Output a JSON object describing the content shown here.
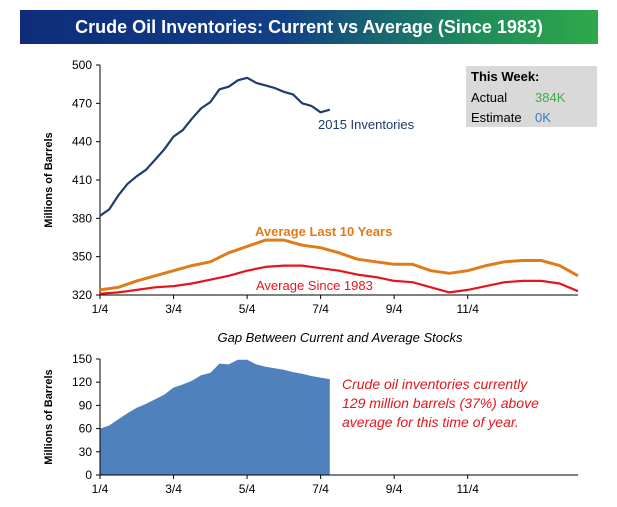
{
  "banner_title": "Crude Oil Inventories: Current vs Average (Since 1983)",
  "colors": {
    "current": "#1f3a6e",
    "avg10": "#e07b1a",
    "avg_since": "#e3161b",
    "gap_fill": "#4f81bd",
    "note": "#e3161b",
    "actual_value": "#3fae49",
    "estimate_value": "#3a78c2",
    "info_bg": "#d9d9d9"
  },
  "info_box": {
    "title": "This Week:",
    "rows": [
      {
        "label": "Actual",
        "value": "384K"
      },
      {
        "label": "Estimate",
        "value": "0K"
      }
    ]
  },
  "note_lines": [
    "Crude oil inventories currently",
    "129 million barrels (37%) above",
    "average for this time of year."
  ],
  "chart_data": [
    {
      "type": "line",
      "ylabel": "Millions of Barrels",
      "ylim": [
        320,
        500
      ],
      "y_ticks": [
        "500",
        "470",
        "440",
        "410",
        "380",
        "350",
        "320"
      ],
      "x_ticks": [
        "1/4",
        "3/4",
        "5/4",
        "7/4",
        "9/4",
        "11/4"
      ],
      "series": [
        {
          "name": "2015 Inventories",
          "x": [
            0,
            1,
            2,
            3,
            4,
            5,
            6,
            7,
            8,
            9,
            10,
            11,
            12,
            13,
            14,
            15,
            16,
            17,
            18,
            19,
            20,
            21,
            22,
            23,
            24,
            25
          ],
          "values": [
            382,
            387,
            398,
            407,
            413,
            418,
            426,
            434,
            444,
            449,
            458,
            466,
            471,
            481,
            483,
            488,
            490,
            486,
            484,
            482,
            479,
            477,
            470,
            468,
            463,
            465
          ]
        },
        {
          "name": "Average Last 10 Years",
          "x": [
            0,
            2,
            4,
            6,
            8,
            10,
            12,
            14,
            16,
            18,
            20,
            22,
            24,
            26,
            28,
            30,
            32,
            34,
            36,
            38,
            40,
            42,
            44,
            46,
            48,
            50,
            52
          ],
          "values": [
            324,
            326,
            331,
            335,
            339,
            343,
            346,
            353,
            358,
            363,
            363,
            359,
            357,
            353,
            348,
            346,
            344,
            344,
            339,
            337,
            339,
            343,
            346,
            347,
            347,
            343,
            335
          ]
        },
        {
          "name": "Average Since 1983",
          "x": [
            0,
            2,
            4,
            6,
            8,
            10,
            12,
            14,
            16,
            18,
            20,
            22,
            24,
            26,
            28,
            30,
            32,
            34,
            36,
            38,
            40,
            42,
            44,
            46,
            48,
            50,
            52
          ],
          "values": [
            321,
            322,
            324,
            326,
            327,
            329,
            332,
            335,
            339,
            342,
            343,
            343,
            341,
            339,
            336,
            334,
            331,
            330,
            326,
            322,
            324,
            327,
            330,
            331,
            331,
            329,
            323
          ]
        }
      ]
    },
    {
      "type": "area",
      "title": "Gap Between Current and Average Stocks",
      "ylabel": "Millions of Barrels",
      "ylim": [
        0,
        150
      ],
      "y_ticks": [
        "150",
        "120",
        "90",
        "60",
        "30",
        "0"
      ],
      "x_ticks": [
        "1/4",
        "3/4",
        "5/4",
        "7/4",
        "9/4",
        "11/4"
      ],
      "series": [
        {
          "name": "Gap",
          "x": [
            0,
            1,
            2,
            3,
            4,
            5,
            6,
            7,
            8,
            9,
            10,
            11,
            12,
            13,
            14,
            15,
            16,
            17,
            18,
            19,
            20,
            21,
            22,
            23,
            24,
            25
          ],
          "values": [
            60,
            64,
            72,
            80,
            87,
            92,
            98,
            104,
            113,
            117,
            122,
            129,
            132,
            144,
            143,
            149,
            149,
            143,
            140,
            138,
            136,
            133,
            131,
            128,
            126,
            124
          ]
        }
      ]
    }
  ]
}
